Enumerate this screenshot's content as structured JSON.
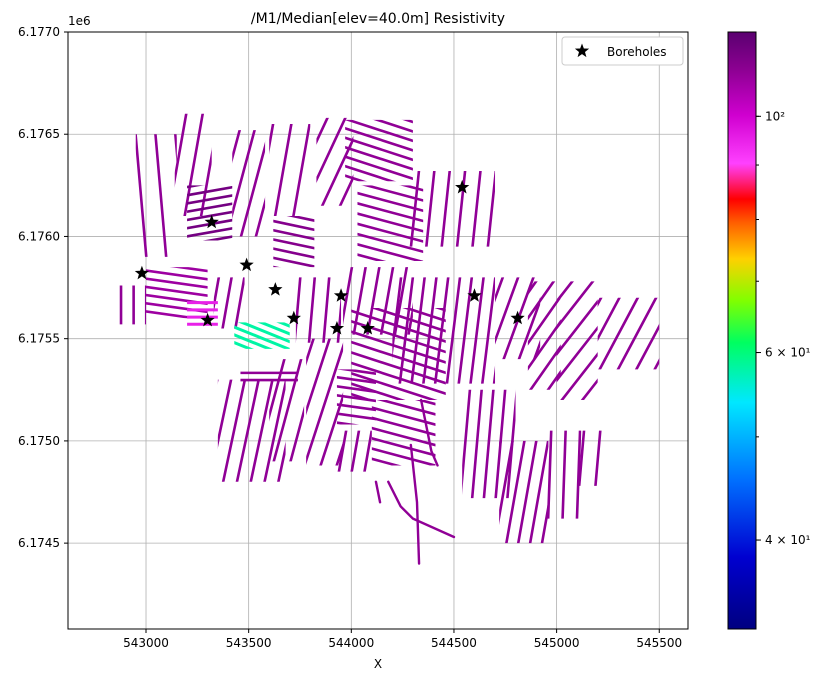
{
  "chart_data": {
    "type": "scatter",
    "title": "/M1/Median[elev=40.0m] Resistivity",
    "xlabel": "X",
    "ylabel": "",
    "y_offset_label": "1e6",
    "xlim": [
      542620,
      545640
    ],
    "ylim": [
      6.17408,
      6.177
    ],
    "x_ticks": [
      543000,
      543500,
      544000,
      544500,
      545000,
      545500
    ],
    "x_tick_labels": [
      "543000",
      "543500",
      "544000",
      "544500",
      "545000",
      "545500"
    ],
    "y_ticks": [
      6.1745,
      6.175,
      6.1755,
      6.176,
      6.1765,
      6.177
    ],
    "y_tick_labels": [
      "6.1745",
      "6.1750",
      "6.1755",
      "6.1760",
      "6.1765",
      "6.1770"
    ],
    "grid": true,
    "legend": {
      "position": "top-right",
      "entries": [
        {
          "label": "Boreholes",
          "marker": "star",
          "color": "#000000"
        }
      ]
    },
    "colorbar": {
      "scale": "log",
      "range": [
        33,
        120
      ],
      "colormap": "gist_ncar-like",
      "tick_values": [
        100,
        60,
        40
      ],
      "tick_labels": [
        "10²",
        "6 × 10¹",
        "4 × 10¹"
      ]
    },
    "boreholes": [
      {
        "x": 542980,
        "y": 6.17582
      },
      {
        "x": 543320,
        "y": 6.17607
      },
      {
        "x": 543490,
        "y": 6.17586
      },
      {
        "x": 543300,
        "y": 6.17559
      },
      {
        "x": 543630,
        "y": 6.17574
      },
      {
        "x": 543720,
        "y": 6.1756
      },
      {
        "x": 543930,
        "y": 6.17555
      },
      {
        "x": 543950,
        "y": 6.17571
      },
      {
        "x": 544080,
        "y": 6.17555
      },
      {
        "x": 544540,
        "y": 6.17624
      },
      {
        "x": 544600,
        "y": 6.17571
      },
      {
        "x": 544810,
        "y": 6.1756
      }
    ],
    "survey_blocks": [
      {
        "x0": 542950,
        "x1": 543150,
        "y0": 6.1759,
        "y1": 6.1765,
        "angle": -95,
        "spacing": 22,
        "resistivity": 110
      },
      {
        "x0": 543140,
        "x1": 543320,
        "y0": 6.1761,
        "y1": 6.1766,
        "angle": -80,
        "spacing": 18,
        "resistivity": 110
      },
      {
        "x0": 543200,
        "x1": 543420,
        "y0": 6.17598,
        "y1": 6.17625,
        "angle": -10,
        "spacing": 9,
        "resistivity": 115
      },
      {
        "x0": 543420,
        "x1": 543580,
        "y0": 6.176,
        "y1": 6.17652,
        "angle": -75,
        "spacing": 16,
        "resistivity": 110
      },
      {
        "x0": 543600,
        "x1": 543800,
        "y0": 6.1761,
        "y1": 6.17655,
        "angle": -80,
        "spacing": 20,
        "resistivity": 110
      },
      {
        "x0": 543830,
        "x1": 544010,
        "y0": 6.17615,
        "y1": 6.17658,
        "angle": -65,
        "spacing": 18,
        "resistivity": 110
      },
      {
        "x0": 543620,
        "x1": 543820,
        "y0": 6.17585,
        "y1": 6.1761,
        "angle": 12,
        "spacing": 10,
        "resistivity": 112
      },
      {
        "x0": 543970,
        "x1": 544300,
        "y0": 6.17627,
        "y1": 6.17657,
        "angle": 18,
        "spacing": 10,
        "resistivity": 110
      },
      {
        "x0": 544030,
        "x1": 544350,
        "y0": 6.17588,
        "y1": 6.17625,
        "angle": 15,
        "spacing": 11,
        "resistivity": 110
      },
      {
        "x0": 544280,
        "x1": 544700,
        "y0": 6.17595,
        "y1": 6.17632,
        "angle": -84,
        "spacing": 17,
        "resistivity": 110
      },
      {
        "x0": 542850,
        "x1": 543000,
        "y0": 6.17557,
        "y1": 6.17576,
        "angle": -90,
        "spacing": 14,
        "resistivity": 110
      },
      {
        "x0": 543000,
        "x1": 543300,
        "y0": 6.1756,
        "y1": 6.17585,
        "angle": 8,
        "spacing": 9,
        "resistivity": 108
      },
      {
        "x0": 543330,
        "x1": 543480,
        "y0": 6.17555,
        "y1": 6.1758,
        "angle": -80,
        "spacing": 14,
        "resistivity": 110
      },
      {
        "x0": 543460,
        "x1": 543740,
        "y0": 6.17528,
        "y1": 6.17535,
        "angle": 0,
        "spacing": 8,
        "resistivity": 110
      },
      {
        "x0": 543730,
        "x1": 543950,
        "y0": 6.17548,
        "y1": 6.1758,
        "angle": -85,
        "spacing": 16,
        "resistivity": 110
      },
      {
        "x0": 543960,
        "x1": 544300,
        "y0": 6.17552,
        "y1": 6.17585,
        "angle": -80,
        "spacing": 15,
        "resistivity": 110
      },
      {
        "x0": 544000,
        "x1": 544460,
        "y0": 6.1752,
        "y1": 6.17565,
        "angle": 18,
        "spacing": 11,
        "resistivity": 110
      },
      {
        "x0": 544200,
        "x1": 544700,
        "y0": 6.17528,
        "y1": 6.1758,
        "angle": -83,
        "spacing": 13,
        "resistivity": 110
      },
      {
        "x0": 544700,
        "x1": 544920,
        "y0": 6.1754,
        "y1": 6.1758,
        "angle": -70,
        "spacing": 16,
        "resistivity": 110
      },
      {
        "x0": 544860,
        "x1": 545020,
        "y0": 6.17525,
        "y1": 6.17578,
        "angle": -55,
        "spacing": 16,
        "resistivity": 110
      },
      {
        "x0": 545000,
        "x1": 545200,
        "y0": 6.1752,
        "y1": 6.17578,
        "angle": -52,
        "spacing": 18,
        "resistivity": 110
      },
      {
        "x0": 545200,
        "x1": 545500,
        "y0": 6.17535,
        "y1": 6.1757,
        "angle": -62,
        "spacing": 18,
        "resistivity": 110
      },
      {
        "x0": 543350,
        "x1": 543680,
        "y0": 6.1748,
        "y1": 6.1753,
        "angle": -78,
        "spacing": 15,
        "resistivity": 110
      },
      {
        "x0": 543600,
        "x1": 543770,
        "y0": 6.1749,
        "y1": 6.1754,
        "angle": -75,
        "spacing": 18,
        "resistivity": 110
      },
      {
        "x0": 543780,
        "x1": 543960,
        "y0": 6.17488,
        "y1": 6.1755,
        "angle": -72,
        "spacing": 17,
        "resistivity": 110
      },
      {
        "x0": 543930,
        "x1": 544120,
        "y0": 6.17508,
        "y1": 6.17535,
        "angle": 8,
        "spacing": 10,
        "resistivity": 110
      },
      {
        "x0": 543930,
        "x1": 544100,
        "y0": 6.17485,
        "y1": 6.17505,
        "angle": -80,
        "spacing": 14,
        "resistivity": 110
      },
      {
        "x0": 544100,
        "x1": 544410,
        "y0": 6.17488,
        "y1": 6.1752,
        "angle": 15,
        "spacing": 11,
        "resistivity": 110
      },
      {
        "x0": 544540,
        "x1": 544800,
        "y0": 6.17472,
        "y1": 6.17525,
        "angle": -85,
        "spacing": 13,
        "resistivity": 110
      },
      {
        "x0": 544720,
        "x1": 544960,
        "y0": 6.1745,
        "y1": 6.175,
        "angle": -80,
        "spacing": 13,
        "resistivity": 110
      },
      {
        "x0": 544950,
        "x1": 545120,
        "y0": 6.17462,
        "y1": 6.17505,
        "angle": -88,
        "spacing": 16,
        "resistivity": 110
      },
      {
        "x0": 545100,
        "x1": 545220,
        "y0": 6.17478,
        "y1": 6.17505,
        "angle": -85,
        "spacing": 18,
        "resistivity": 110
      }
    ],
    "anomaly_zones": [
      {
        "x0": 543430,
        "x1": 543700,
        "y0": 6.17545,
        "y1": 6.17558,
        "angle": 22,
        "spacing": 8,
        "resistivity": 58
      },
      {
        "x0": 543200,
        "x1": 543350,
        "y0": 6.17556,
        "y1": 6.1757,
        "angle": 0,
        "spacing": 8,
        "resistivity": 95
      }
    ],
    "isolated_lines": [
      {
        "points": [
          [
            544120,
            6.1748
          ],
          [
            544140,
            6.1747
          ]
        ],
        "resistivity": 110
      },
      {
        "points": [
          [
            544180,
            6.1748
          ],
          [
            544240,
            6.17468
          ],
          [
            544300,
            6.17462
          ],
          [
            544500,
            6.17453
          ]
        ],
        "resistivity": 110
      },
      {
        "points": [
          [
            544340,
            6.1752
          ],
          [
            544390,
            6.17495
          ],
          [
            544420,
            6.17488
          ]
        ],
        "resistivity": 110
      },
      {
        "points": [
          [
            544290,
            6.17498
          ],
          [
            544320,
            6.1747
          ],
          [
            544330,
            6.1744
          ]
        ],
        "resistivity": 110
      }
    ]
  }
}
